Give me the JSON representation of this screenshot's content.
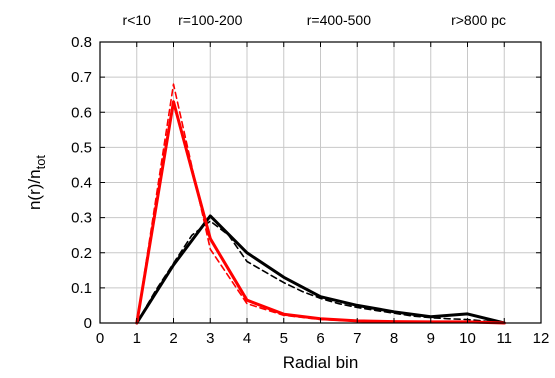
{
  "chart_data": {
    "type": "line",
    "xlabel": "Radial bin",
    "ylabel_main": "n(r)/n",
    "ylabel_sub": "tot",
    "xlim": [
      0,
      12
    ],
    "ylim": [
      0,
      0.8
    ],
    "xticks": [
      0,
      1,
      2,
      3,
      4,
      5,
      6,
      7,
      8,
      9,
      10,
      11,
      12
    ],
    "yticks": [
      0,
      0.1,
      0.2,
      0.3,
      0.4,
      0.5,
      0.6,
      0.7,
      0.8
    ],
    "grid": true,
    "top_annotations": [
      {
        "text": "r<10",
        "x": 1
      },
      {
        "text": "r=100-200",
        "x": 3
      },
      {
        "text": "r=400-500",
        "x": 6.5
      },
      {
        "text": "r>800 pc",
        "x": 10.3
      }
    ],
    "series": [
      {
        "color": "#000000",
        "style": "solid",
        "width": 3,
        "x": [
          1,
          2,
          3,
          4,
          5,
          6,
          7,
          8,
          9,
          10,
          11
        ],
        "y": [
          0,
          0.165,
          0.305,
          0.2,
          0.13,
          0.075,
          0.05,
          0.032,
          0.018,
          0.026,
          0
        ]
      },
      {
        "color": "#000000",
        "style": "dashed",
        "width": 1.6,
        "x": [
          1,
          1.5,
          2,
          2.5,
          3,
          3.5,
          4,
          4.5,
          5,
          5.5,
          6,
          6.5,
          7,
          7.5,
          8,
          8.5,
          9,
          9.5,
          10,
          10.5,
          11
        ],
        "y": [
          0,
          0.09,
          0.17,
          0.25,
          0.29,
          0.25,
          0.175,
          0.145,
          0.115,
          0.09,
          0.07,
          0.055,
          0.044,
          0.036,
          0.028,
          0.02,
          0.015,
          0.012,
          0.01,
          0.005,
          0
        ]
      },
      {
        "color": "#ff0000",
        "style": "solid",
        "width": 3,
        "x": [
          1,
          2,
          3,
          4,
          5,
          6,
          7,
          8,
          9,
          10,
          11
        ],
        "y": [
          0,
          0.63,
          0.24,
          0.065,
          0.025,
          0.012,
          0.006,
          0.004,
          0.003,
          0.003,
          0
        ]
      },
      {
        "color": "#ff0000",
        "style": "dashed",
        "width": 1.6,
        "x": [
          1,
          2,
          3,
          4,
          5,
          6,
          7,
          8,
          9,
          10,
          11
        ],
        "y": [
          0,
          0.68,
          0.21,
          0.055,
          0.022,
          0.01,
          0.005,
          0.003,
          0.002,
          0.002,
          0
        ]
      }
    ]
  }
}
